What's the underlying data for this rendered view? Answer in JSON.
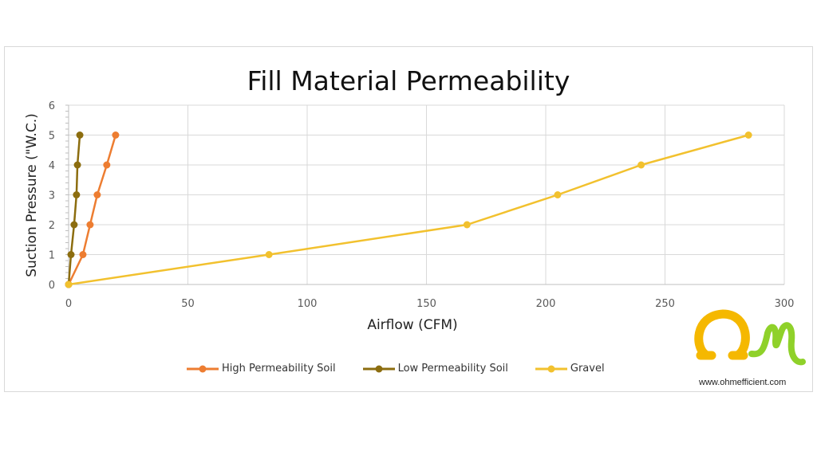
{
  "chart_data": {
    "type": "line",
    "title": "Fill Material Permeability",
    "xlabel": "Airflow (CFM)",
    "ylabel": "Suction Pressure (\"W.C.)",
    "xlim": [
      0,
      300
    ],
    "ylim": [
      0,
      6
    ],
    "x_ticks": [
      0,
      50,
      100,
      150,
      200,
      250,
      300
    ],
    "y_ticks": [
      0,
      1,
      2,
      3,
      4,
      5,
      6
    ],
    "grid": true,
    "legend_position": "bottom",
    "series": [
      {
        "name": "High Permeability Soil",
        "color": "#ed7d31",
        "points": [
          [
            0,
            0
          ],
          [
            6,
            1
          ],
          [
            9,
            2
          ],
          [
            12,
            3
          ],
          [
            16,
            4
          ],
          [
            19.7,
            5
          ]
        ]
      },
      {
        "name": "Low Permeability Soil",
        "color": "#8c6d0f",
        "points": [
          [
            0,
            0
          ],
          [
            1,
            1
          ],
          [
            2.3,
            2
          ],
          [
            3.3,
            3
          ],
          [
            3.7,
            4
          ],
          [
            4.7,
            5
          ]
        ]
      },
      {
        "name": "Gravel",
        "color": "#f2c12e",
        "points": [
          [
            0,
            0
          ],
          [
            84,
            1
          ],
          [
            167,
            2
          ],
          [
            205,
            3
          ],
          [
            240,
            4
          ],
          [
            285,
            5
          ]
        ]
      }
    ]
  },
  "legend": {
    "items": [
      {
        "label": "High Permeability Soil",
        "color": "#ed7d31"
      },
      {
        "label": "Low Permeability Soil",
        "color": "#8c6d0f"
      },
      {
        "label": "Gravel",
        "color": "#f2c12e"
      }
    ]
  },
  "logo": {
    "url_text": "www.ohmefficient.com",
    "colors": {
      "omega": "#f5b800",
      "m": "#8fd12a"
    }
  }
}
